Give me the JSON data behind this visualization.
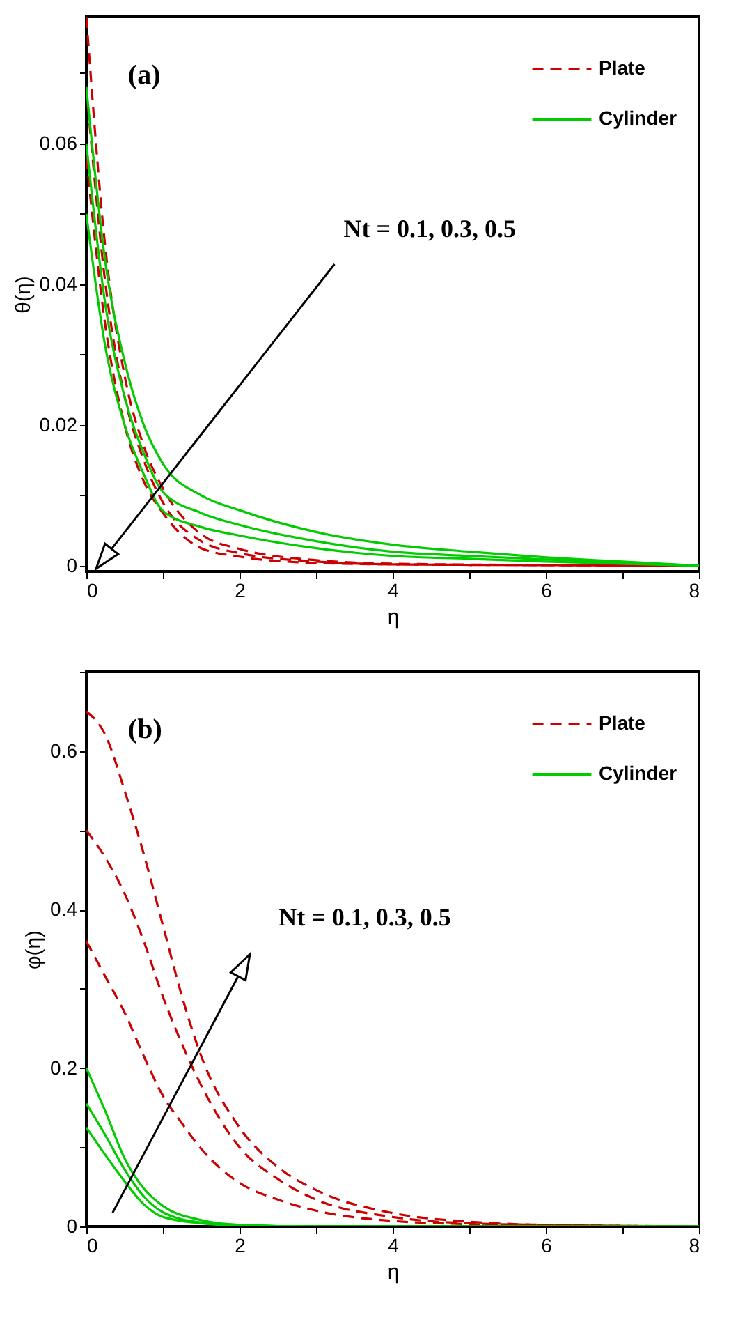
{
  "chart_data": [
    {
      "type": "line",
      "xlabel": "η",
      "ylabel": "θ(η)",
      "annotations": [
        "(a)",
        "Nt = 0.1, 0.3, 0.5"
      ],
      "xlim": [
        0,
        8
      ],
      "xticks": [
        0,
        {
          "value": 1,
          "label": null
        },
        2,
        {
          "value": 3,
          "label": null
        },
        4,
        {
          "value": 5,
          "label": null
        },
        6,
        {
          "value": 7,
          "label": null
        },
        8
      ],
      "ylim": [
        -0.0008,
        0.078
      ],
      "yticks": [
        0,
        {
          "value": 0.01,
          "label": null
        },
        0.02,
        {
          "value": 0.03,
          "label": null
        },
        0.04,
        {
          "value": 0.05,
          "label": null
        },
        0.06,
        {
          "value": 0.07,
          "label": null
        }
      ],
      "legend": "top right",
      "series": [
        {
          "name": "Plate",
          "color": "#cc0000",
          "line_style": "dashed",
          "x": [
            0,
            0.25,
            0.5,
            0.75,
            1,
            1.5,
            2,
            3,
            4,
            6,
            8
          ],
          "values": [
            0.078,
            0.045,
            0.027,
            0.017,
            0.011,
            0.0045,
            0.0024,
            0.0008,
            0.0003,
            0.0001,
            0
          ]
        },
        {
          "color": "#cc0000",
          "line_style": "dashed",
          "x": [
            0,
            0.25,
            0.5,
            0.75,
            1,
            1.5,
            2,
            3,
            4,
            6,
            8
          ],
          "values": [
            0.068,
            0.04,
            0.024,
            0.015,
            0.009,
            0.0035,
            0.0018,
            0.0006,
            0.0002,
            0.0001,
            0
          ]
        },
        {
          "color": "#cc0000",
          "line_style": "dashed",
          "x": [
            0,
            0.25,
            0.5,
            0.75,
            1,
            1.5,
            2,
            3,
            4,
            6,
            8
          ],
          "values": [
            0.058,
            0.034,
            0.02,
            0.012,
            0.0075,
            0.0025,
            0.0013,
            0.0004,
            0.0002,
            0.0001,
            0
          ]
        },
        {
          "name": "Cylinder",
          "color": "#00cc00",
          "line_style": "solid",
          "x": [
            0,
            0.25,
            0.5,
            0.75,
            1,
            1.5,
            2,
            3,
            4,
            5,
            6,
            7,
            8
          ],
          "values": [
            0.068,
            0.043,
            0.029,
            0.02,
            0.0145,
            0.01,
            0.0079,
            0.0048,
            0.003,
            0.002,
            0.0012,
            0.0006,
            0
          ]
        },
        {
          "color": "#00cc00",
          "line_style": "solid",
          "x": [
            0,
            0.25,
            0.5,
            0.75,
            1,
            1.5,
            2,
            3,
            4,
            5,
            6,
            7,
            8
          ],
          "values": [
            0.06,
            0.037,
            0.024,
            0.016,
            0.0105,
            0.0075,
            0.0058,
            0.0035,
            0.002,
            0.0014,
            0.0009,
            0.0005,
            0
          ]
        },
        {
          "color": "#00cc00",
          "line_style": "solid",
          "x": [
            0,
            0.25,
            0.5,
            0.75,
            1,
            1.5,
            2,
            3,
            4,
            5,
            6,
            7,
            8
          ],
          "values": [
            0.05,
            0.031,
            0.02,
            0.013,
            0.0078,
            0.0055,
            0.0043,
            0.0025,
            0.0014,
            0.001,
            0.0006,
            0.0003,
            0
          ]
        }
      ]
    },
    {
      "type": "line",
      "xlabel": "η",
      "ylabel": "φ(η)",
      "annotations": [
        "(b)",
        "Nt = 0.1, 0.3, 0.5"
      ],
      "xlim": [
        0,
        8
      ],
      "xticks": [
        0,
        {
          "value": 1,
          "label": null
        },
        2,
        {
          "value": 3,
          "label": null
        },
        4,
        {
          "value": 5,
          "label": null
        },
        6,
        {
          "value": 7,
          "label": null
        },
        8
      ],
      "ylim": [
        0,
        0.7
      ],
      "yticks": [
        0,
        {
          "value": 0.1,
          "label": null
        },
        0.2,
        {
          "value": 0.3,
          "label": null
        },
        0.4,
        {
          "value": 0.5,
          "label": null
        },
        0.6,
        {
          "value": 0.7,
          "label": null
        }
      ],
      "legend": "top right",
      "series": [
        {
          "name": "Plate",
          "color": "#cc0000",
          "line_style": "dashed",
          "x": [
            0,
            0.25,
            0.5,
            0.75,
            1,
            1.25,
            1.5,
            2,
            2.5,
            3,
            4,
            5,
            6,
            8
          ],
          "values": [
            0.65,
            0.62,
            0.55,
            0.47,
            0.38,
            0.29,
            0.215,
            0.125,
            0.075,
            0.046,
            0.017,
            0.006,
            0.002,
            0
          ]
        },
        {
          "color": "#cc0000",
          "line_style": "dashed",
          "x": [
            0,
            0.25,
            0.5,
            0.75,
            1,
            1.25,
            1.5,
            2,
            2.5,
            3,
            4,
            5,
            6,
            8
          ],
          "values": [
            0.5,
            0.465,
            0.42,
            0.36,
            0.29,
            0.23,
            0.178,
            0.1,
            0.06,
            0.034,
            0.012,
            0.004,
            0.002,
            0
          ]
        },
        {
          "color": "#cc0000",
          "line_style": "dashed",
          "x": [
            0,
            0.25,
            0.5,
            0.75,
            1,
            1.25,
            1.5,
            2,
            2.5,
            3,
            4,
            5,
            6,
            8
          ],
          "values": [
            0.36,
            0.315,
            0.27,
            0.215,
            0.165,
            0.13,
            0.098,
            0.055,
            0.034,
            0.02,
            0.007,
            0.003,
            0.001,
            0
          ]
        },
        {
          "name": "Cylinder",
          "color": "#00cc00",
          "line_style": "solid",
          "x": [
            0,
            0.25,
            0.5,
            0.75,
            1,
            1.5,
            2,
            3,
            5,
            8
          ],
          "values": [
            0.2,
            0.145,
            0.086,
            0.048,
            0.026,
            0.008,
            0.002,
            0,
            0,
            0
          ]
        },
        {
          "color": "#00cc00",
          "line_style": "solid",
          "x": [
            0,
            0.25,
            0.5,
            0.75,
            1,
            1.5,
            2,
            3,
            5,
            8
          ],
          "values": [
            0.155,
            0.115,
            0.072,
            0.038,
            0.018,
            0.005,
            0.002,
            0,
            0,
            0
          ]
        },
        {
          "color": "#00cc00",
          "line_style": "solid",
          "x": [
            0,
            0.25,
            0.5,
            0.75,
            1,
            1.5,
            2,
            3,
            5,
            8
          ],
          "values": [
            0.125,
            0.09,
            0.057,
            0.028,
            0.012,
            0.004,
            0.001,
            0,
            0,
            0
          ]
        }
      ]
    }
  ]
}
